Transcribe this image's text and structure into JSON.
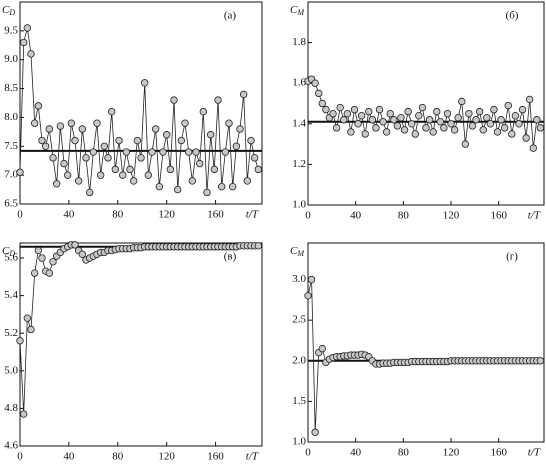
{
  "chart_data": [
    {
      "type": "line",
      "label": "(а)",
      "ylabel": "C",
      "ylabel_sub": "D",
      "xlabel": "t/T",
      "x": [
        0,
        3,
        6,
        9,
        12,
        15,
        18,
        21,
        24,
        27,
        30,
        33,
        36,
        39,
        42,
        45,
        48,
        51,
        54,
        57,
        60,
        63,
        66,
        69,
        72,
        75,
        78,
        81,
        84,
        87,
        90,
        93,
        96,
        99,
        102,
        105,
        108,
        111,
        114,
        117,
        120,
        123,
        126,
        129,
        132,
        135,
        138,
        141,
        144,
        147,
        150,
        153,
        156,
        159,
        162,
        165,
        168,
        171,
        174,
        177,
        180,
        183,
        186,
        189,
        192,
        195
      ],
      "values": [
        7.05,
        9.3,
        9.55,
        9.1,
        7.9,
        8.2,
        7.6,
        7.5,
        7.8,
        7.3,
        6.85,
        7.85,
        7.2,
        7.0,
        7.9,
        7.6,
        6.9,
        7.8,
        7.3,
        6.7,
        7.4,
        7.9,
        7.0,
        7.5,
        7.3,
        8.1,
        7.1,
        7.6,
        7.0,
        7.4,
        7.1,
        6.9,
        7.6,
        7.3,
        8.6,
        7.0,
        7.4,
        7.8,
        6.8,
        7.4,
        7.7,
        7.1,
        8.3,
        6.75,
        7.6,
        7.9,
        7.4,
        6.9,
        7.4,
        7.2,
        8.1,
        6.7,
        7.7,
        7.1,
        8.3,
        6.8,
        7.4,
        7.9,
        6.8,
        7.5,
        7.8,
        8.4,
        6.9,
        7.6,
        7.3,
        7.1
      ],
      "reference_line": 7.42,
      "color": "#c8c8c8",
      "xlim": [
        0,
        198
      ],
      "xticks": [
        0,
        40,
        80,
        120,
        160
      ],
      "ylim": [
        6.5,
        10
      ],
      "yticks": [
        6.5,
        {
          "value": 7,
          "label": "7.0"
        },
        7.5,
        {
          "value": 8,
          "label": "8.0"
        },
        8.5,
        {
          "value": 9,
          "label": "9.0"
        },
        9.5
      ]
    },
    {
      "type": "line",
      "label": "(б)",
      "ylabel": "C",
      "ylabel_sub": "M",
      "xlabel": "t/T",
      "x": [
        0,
        3,
        6,
        9,
        12,
        15,
        18,
        21,
        24,
        27,
        30,
        33,
        36,
        39,
        42,
        45,
        48,
        51,
        54,
        57,
        60,
        63,
        66,
        69,
        72,
        75,
        78,
        81,
        84,
        87,
        90,
        93,
        96,
        99,
        102,
        105,
        108,
        111,
        114,
        117,
        120,
        123,
        126,
        129,
        132,
        135,
        138,
        141,
        144,
        147,
        150,
        153,
        156,
        159,
        162,
        165,
        168,
        171,
        174,
        177,
        180,
        183,
        186,
        189,
        192,
        195
      ],
      "values": [
        1.61,
        1.62,
        1.6,
        1.55,
        1.5,
        1.47,
        1.43,
        1.45,
        1.38,
        1.48,
        1.42,
        1.45,
        1.36,
        1.47,
        1.4,
        1.44,
        1.35,
        1.46,
        1.42,
        1.38,
        1.47,
        1.41,
        1.36,
        1.45,
        1.42,
        1.39,
        1.43,
        1.37,
        1.46,
        1.4,
        1.35,
        1.44,
        1.48,
        1.38,
        1.42,
        1.36,
        1.46,
        1.41,
        1.38,
        1.45,
        1.4,
        1.37,
        1.43,
        1.51,
        1.3,
        1.45,
        1.39,
        1.42,
        1.46,
        1.37,
        1.43,
        1.4,
        1.47,
        1.36,
        1.42,
        1.38,
        1.49,
        1.35,
        1.44,
        1.4,
        1.47,
        1.33,
        1.52,
        1.28,
        1.42,
        1.38
      ],
      "reference_line": 1.41,
      "color": "#c8c8c8",
      "xlim": [
        0,
        198
      ],
      "xticks": [
        0,
        40,
        80,
        120,
        160
      ],
      "ylim": [
        1.0,
        2.0
      ],
      "yticks": [
        {
          "value": 1,
          "label": "1.0"
        },
        1.2,
        1.4,
        1.6,
        1.8
      ]
    },
    {
      "type": "line",
      "label": "(в)",
      "ylabel": "C",
      "ylabel_sub": "D",
      "xlabel": "t/T",
      "x": [
        0,
        3,
        6,
        9,
        12,
        15,
        18,
        21,
        24,
        27,
        30,
        33,
        36,
        39,
        42,
        45,
        48,
        51,
        54,
        57,
        60,
        63,
        66,
        69,
        72,
        75,
        78,
        81,
        84,
        87,
        90,
        93,
        96,
        99,
        102,
        105,
        108,
        111,
        114,
        117,
        120,
        123,
        126,
        129,
        132,
        135,
        138,
        141,
        144,
        147,
        150,
        153,
        156,
        159,
        162,
        165,
        168,
        171,
        174,
        177,
        180,
        183,
        186,
        189,
        192,
        195
      ],
      "values": [
        5.16,
        4.77,
        5.28,
        5.22,
        5.52,
        5.64,
        5.6,
        5.53,
        5.52,
        5.58,
        5.61,
        5.63,
        5.65,
        5.66,
        5.67,
        5.67,
        5.64,
        5.62,
        5.59,
        5.6,
        5.61,
        5.62,
        5.63,
        5.63,
        5.64,
        5.64,
        5.645,
        5.65,
        5.65,
        5.65,
        5.65,
        5.655,
        5.655,
        5.655,
        5.66,
        5.66,
        5.66,
        5.66,
        5.66,
        5.66,
        5.66,
        5.66,
        5.66,
        5.66,
        5.66,
        5.66,
        5.66,
        5.66,
        5.66,
        5.66,
        5.66,
        5.66,
        5.66,
        5.66,
        5.66,
        5.66,
        5.66,
        5.66,
        5.66,
        5.66,
        5.665,
        5.665,
        5.665,
        5.665,
        5.665,
        5.665
      ],
      "reference_line": 5.66,
      "color": "#c8c8c8",
      "xlim": [
        0,
        198
      ],
      "xticks": [
        0,
        40,
        80,
        120,
        160
      ],
      "ylim": [
        4.6,
        5.68
      ],
      "yticks": [
        4.6,
        4.8,
        {
          "value": 5,
          "label": "5.0"
        },
        5.2,
        5.4,
        5.6
      ]
    },
    {
      "type": "line",
      "label": "(г)",
      "ylabel": "C",
      "ylabel_sub": "M",
      "xlabel": "t/T",
      "x": [
        0,
        3,
        6,
        9,
        12,
        15,
        18,
        21,
        24,
        27,
        30,
        33,
        36,
        39,
        42,
        45,
        48,
        51,
        54,
        57,
        60,
        63,
        66,
        69,
        72,
        75,
        78,
        81,
        84,
        87,
        90,
        93,
        96,
        99,
        102,
        105,
        108,
        111,
        114,
        117,
        120,
        123,
        126,
        129,
        132,
        135,
        138,
        141,
        144,
        147,
        150,
        153,
        156,
        159,
        162,
        165,
        168,
        171,
        174,
        177,
        180,
        183,
        186,
        189,
        192,
        195
      ],
      "values": [
        2.8,
        3.0,
        1.12,
        2.1,
        2.15,
        1.98,
        2.02,
        2.04,
        2.05,
        2.05,
        2.06,
        2.06,
        2.07,
        2.07,
        2.07,
        2.08,
        2.07,
        2.05,
        2.0,
        1.96,
        1.96,
        1.97,
        1.97,
        1.97,
        1.98,
        1.98,
        1.98,
        1.98,
        1.98,
        1.99,
        1.99,
        1.99,
        1.99,
        1.99,
        1.99,
        1.99,
        1.99,
        1.99,
        1.99,
        1.99,
        2.0,
        2.0,
        2.0,
        2.0,
        2.0,
        2.0,
        2.0,
        2.0,
        2.0,
        2.0,
        2.0,
        2.0,
        2.0,
        2.0,
        2.0,
        2.0,
        2.0,
        2.0,
        2.0,
        2.0,
        2.0,
        2.0,
        2.0,
        2.0,
        2.0,
        2.0
      ],
      "reference_line": 2.0,
      "color": "#c8c8c8",
      "xlim": [
        0,
        198
      ],
      "xticks": [
        0,
        40,
        80,
        120,
        160
      ],
      "ylim": [
        1.0,
        3.45
      ],
      "yticks": [
        {
          "value": 1,
          "label": "1.0"
        },
        1.5,
        {
          "value": 2,
          "label": "2.0"
        },
        2.5,
        {
          "value": 3,
          "label": "3.0"
        }
      ]
    }
  ]
}
